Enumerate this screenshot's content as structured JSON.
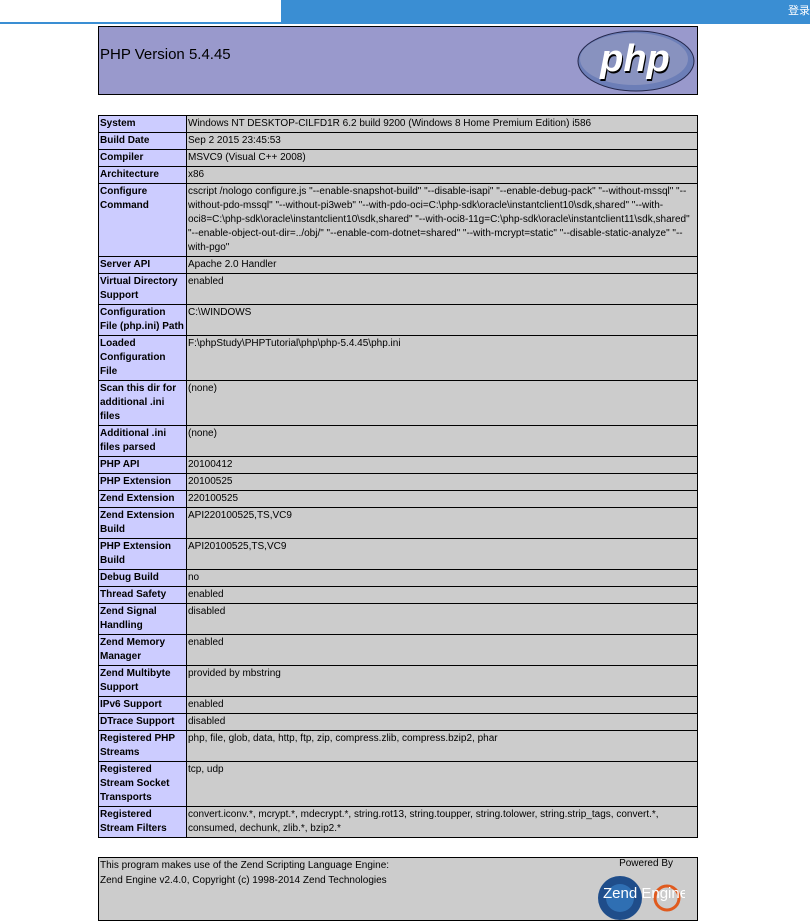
{
  "topbar": {
    "right_label": "登录"
  },
  "header": {
    "title": "PHP Version 5.4.45",
    "logo_text": "php"
  },
  "rows": [
    {
      "label": "System",
      "value": "Windows NT DESKTOP-CILFD1R 6.2 build 9200 (Windows 8 Home Premium Edition) i586"
    },
    {
      "label": "Build Date",
      "value": "Sep 2 2015 23:45:53"
    },
    {
      "label": "Compiler",
      "value": "MSVC9 (Visual C++ 2008)"
    },
    {
      "label": "Architecture",
      "value": "x86"
    },
    {
      "label": "Configure Command",
      "value": "cscript /nologo configure.js \"--enable-snapshot-build\" \"--disable-isapi\" \"--enable-debug-pack\" \"--without-mssql\" \"--without-pdo-mssql\" \"--without-pi3web\" \"--with-pdo-oci=C:\\php-sdk\\oracle\\instantclient10\\sdk,shared\" \"--with-oci8=C:\\php-sdk\\oracle\\instantclient10\\sdk,shared\" \"--with-oci8-11g=C:\\php-sdk\\oracle\\instantclient11\\sdk,shared\" \"--enable-object-out-dir=../obj/\" \"--enable-com-dotnet=shared\" \"--with-mcrypt=static\" \"--disable-static-analyze\" \"--with-pgo\""
    },
    {
      "label": "Server API",
      "value": "Apache 2.0 Handler"
    },
    {
      "label": "Virtual Directory Support",
      "value": "enabled"
    },
    {
      "label": "Configuration File (php.ini) Path",
      "value": "C:\\WINDOWS"
    },
    {
      "label": "Loaded Configuration File",
      "value": "F:\\phpStudy\\PHPTutorial\\php\\php-5.4.45\\php.ini"
    },
    {
      "label": "Scan this dir for additional .ini files",
      "value": "(none)"
    },
    {
      "label": "Additional .ini files parsed",
      "value": "(none)"
    },
    {
      "label": "PHP API",
      "value": "20100412"
    },
    {
      "label": "PHP Extension",
      "value": "20100525"
    },
    {
      "label": "Zend Extension",
      "value": "220100525"
    },
    {
      "label": "Zend Extension Build",
      "value": "API220100525,TS,VC9"
    },
    {
      "label": "PHP Extension Build",
      "value": "API20100525,TS,VC9"
    },
    {
      "label": "Debug Build",
      "value": "no"
    },
    {
      "label": "Thread Safety",
      "value": "enabled"
    },
    {
      "label": "Zend Signal Handling",
      "value": "disabled"
    },
    {
      "label": "Zend Memory Manager",
      "value": "enabled"
    },
    {
      "label": "Zend Multibyte Support",
      "value": "provided by mbstring"
    },
    {
      "label": "IPv6 Support",
      "value": "enabled"
    },
    {
      "label": "DTrace Support",
      "value": "disabled"
    },
    {
      "label": "Registered PHP Streams",
      "value": "php, file, glob, data, http, ftp, zip, compress.zlib, compress.bzip2, phar"
    },
    {
      "label": "Registered Stream Socket Transports",
      "value": "tcp, udp"
    },
    {
      "label": "Registered Stream Filters",
      "value": "convert.iconv.*, mcrypt.*, mdecrypt.*, string.rot13, string.toupper, string.tolower, string.strip_tags, convert.*, consumed, dechunk, zlib.*, bzip2.*"
    }
  ],
  "footer": {
    "line1": "This program makes use of the Zend Scripting Language Engine:",
    "line2": "Zend Engine v2.4.0, Copyright (c) 1998-2014 Zend Technologies",
    "powered": "Powered By",
    "zend_logo_text": "Zend Engine"
  },
  "colors": {
    "header_bg": "#9999cc",
    "label_bg": "#ccccff",
    "value_bg": "#cccccc",
    "topbar": "#3a8ed3"
  }
}
